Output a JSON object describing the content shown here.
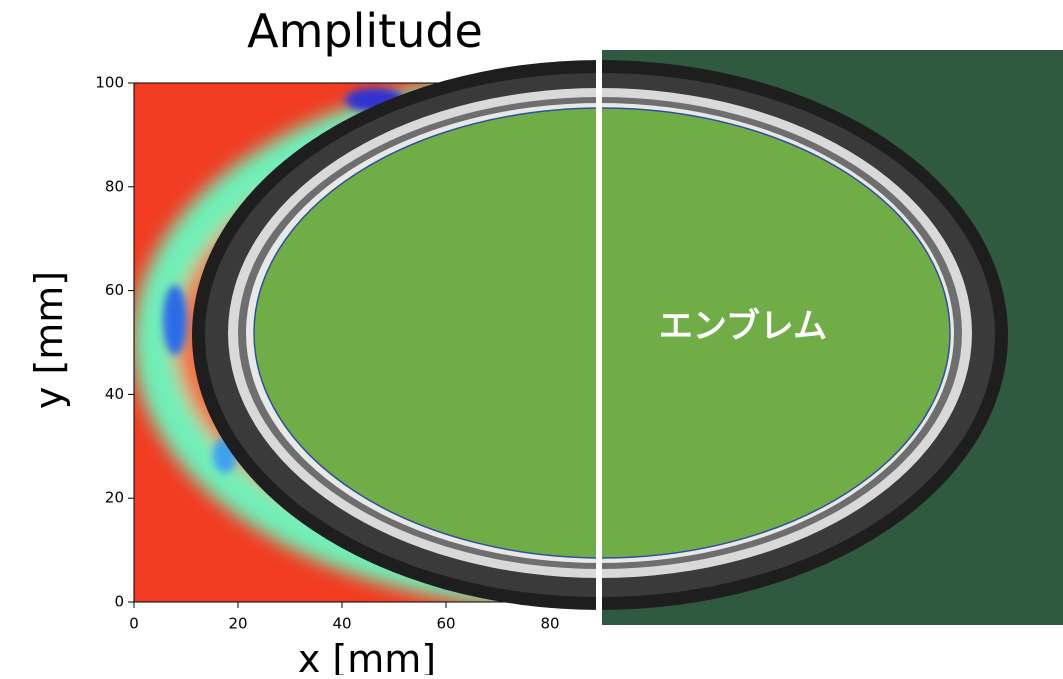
{
  "chart_data": {
    "type": "heatmap",
    "title": "Amplitude",
    "xlabel": "x [mm]",
    "ylabel": "y [mm]",
    "xlim": [
      0,
      100
    ],
    "ylim": [
      0,
      100
    ],
    "xticks": [
      0,
      20,
      40,
      60,
      80
    ],
    "yticks": [
      0,
      20,
      40,
      60,
      80,
      100
    ]
  },
  "photo": {
    "label": "エンブレム"
  }
}
